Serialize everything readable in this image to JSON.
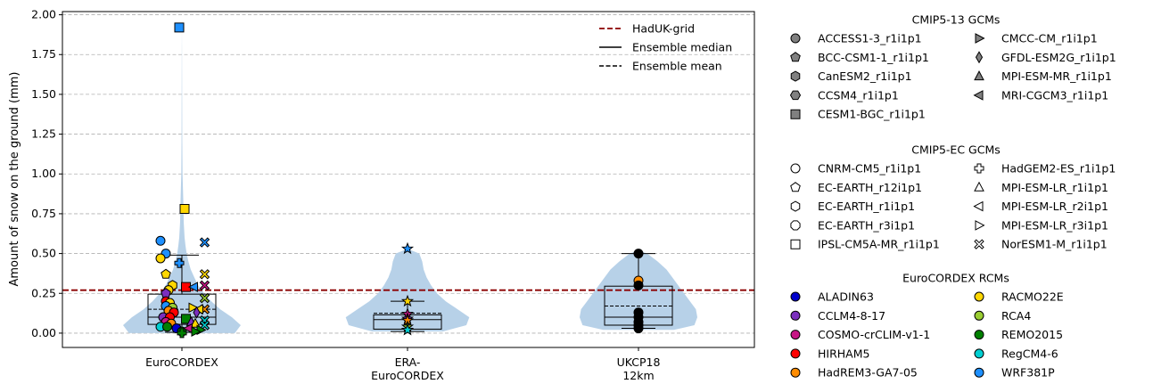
{
  "chart_data": {
    "type": "violin",
    "ylabel": "Amount of snow on the ground (mm)",
    "ylim": [
      -0.09,
      2.02
    ],
    "yticks": [
      0.0,
      0.25,
      0.5,
      0.75,
      1.0,
      1.25,
      1.5,
      1.75,
      2.0
    ],
    "ytick_labels": [
      "0.00",
      "0.25",
      "0.50",
      "0.75",
      "1.00",
      "1.25",
      "1.50",
      "1.75",
      "2.00"
    ],
    "grid": true,
    "categories": [
      {
        "key": "euro",
        "label_lines": [
          "EuroCORDEX"
        ]
      },
      {
        "key": "era",
        "label_lines": [
          "ERA-",
          "EuroCORDEX"
        ]
      },
      {
        "key": "ukcp",
        "label_lines": [
          "UKCP18",
          "12km"
        ]
      }
    ],
    "reference_line": {
      "name": "HadUK-grid",
      "value": 0.27,
      "color": "#8b0000"
    },
    "legend_top": [
      {
        "label": "HadUK-grid",
        "style": "red-dashed"
      },
      {
        "label": "Ensemble median",
        "style": "solid"
      },
      {
        "label": "Ensemble mean",
        "style": "dashed"
      }
    ],
    "violins": [
      {
        "profile": [
          [
            0.0,
            1.8
          ],
          [
            0.05,
            2.0
          ],
          [
            0.1,
            1.7
          ],
          [
            0.15,
            1.3
          ],
          [
            0.2,
            1.0
          ],
          [
            0.25,
            0.75
          ],
          [
            0.3,
            0.55
          ],
          [
            0.35,
            0.42
          ],
          [
            0.4,
            0.3
          ],
          [
            0.45,
            0.22
          ],
          [
            0.5,
            0.16
          ],
          [
            0.55,
            0.12
          ],
          [
            0.6,
            0.09
          ],
          [
            0.7,
            0.06
          ],
          [
            0.8,
            0.05
          ],
          [
            0.9,
            0.035
          ],
          [
            1.0,
            0.02
          ],
          [
            1.2,
            0.012
          ],
          [
            1.4,
            0.008
          ],
          [
            1.6,
            0.005
          ],
          [
            1.8,
            0.003
          ],
          [
            1.92,
            0.001
          ]
        ]
      },
      {
        "profile": [
          [
            0.01,
            1.2
          ],
          [
            0.05,
            2.0
          ],
          [
            0.1,
            2.1
          ],
          [
            0.15,
            1.7
          ],
          [
            0.2,
            1.3
          ],
          [
            0.25,
            1.0
          ],
          [
            0.3,
            0.8
          ],
          [
            0.35,
            0.65
          ],
          [
            0.4,
            0.55
          ],
          [
            0.45,
            0.5
          ],
          [
            0.5,
            0.4
          ],
          [
            0.53,
            0.001
          ]
        ]
      },
      {
        "profile": [
          [
            0.02,
            1.2
          ],
          [
            0.05,
            1.9
          ],
          [
            0.1,
            2.0
          ],
          [
            0.15,
            1.95
          ],
          [
            0.2,
            1.75
          ],
          [
            0.25,
            1.55
          ],
          [
            0.3,
            1.35
          ],
          [
            0.35,
            1.15
          ],
          [
            0.4,
            0.95
          ],
          [
            0.45,
            0.65
          ],
          [
            0.5,
            0.3
          ],
          [
            0.52,
            0.001
          ]
        ]
      }
    ],
    "boxes": [
      {
        "q1": 0.055,
        "median": 0.1,
        "q3": 0.245,
        "mean": 0.15,
        "whisker_low": 0.005,
        "whisker_high": 0.49
      },
      {
        "q1": 0.025,
        "median": 0.085,
        "q3": 0.115,
        "mean": 0.125,
        "whisker_low": 0.01,
        "whisker_high": 0.2
      },
      {
        "q1": 0.05,
        "median": 0.1,
        "q3": 0.295,
        "mean": 0.17,
        "whisker_low": 0.03,
        "whisker_high": 0.5
      }
    ],
    "points": [
      {
        "c": 0,
        "dx": -0.02,
        "y": 1.92,
        "m": "square",
        "col": "#1e90ff"
      },
      {
        "c": 0,
        "dx": 0.02,
        "y": 0.78,
        "m": "square",
        "col": "#ffd700"
      },
      {
        "c": 0,
        "dx": -0.16,
        "y": 0.58,
        "m": "circle",
        "col": "#1e90ff"
      },
      {
        "c": 0,
        "dx": -0.12,
        "y": 0.5,
        "m": "circle",
        "col": "#1e90ff"
      },
      {
        "c": 0,
        "dx": -0.16,
        "y": 0.47,
        "m": "circle",
        "col": "#ffd700"
      },
      {
        "c": 0,
        "dx": -0.02,
        "y": 0.44,
        "m": "cross",
        "col": "#1e90ff"
      },
      {
        "c": 0,
        "dx": 0.17,
        "y": 0.57,
        "m": "xcross",
        "col": "#1e90ff"
      },
      {
        "c": 0,
        "dx": 0.17,
        "y": 0.37,
        "m": "xcross",
        "col": "#ffd700"
      },
      {
        "c": 0,
        "dx": 0.17,
        "y": 0.3,
        "m": "xcross",
        "col": "#c71585"
      },
      {
        "c": 0,
        "dx": 0.17,
        "y": 0.22,
        "m": "xcross",
        "col": "#9acd32"
      },
      {
        "c": 0,
        "dx": 0.17,
        "y": 0.15,
        "m": "xcross",
        "col": "#ff8c00"
      },
      {
        "c": 0,
        "dx": 0.17,
        "y": 0.08,
        "m": "xcross",
        "col": "#00ced1"
      },
      {
        "c": 0,
        "dx": 0.17,
        "y": 0.05,
        "m": "xcross",
        "col": "#00ced1"
      },
      {
        "c": 0,
        "dx": -0.12,
        "y": 0.37,
        "m": "pentagon",
        "col": "#ffd700"
      },
      {
        "c": 0,
        "dx": -0.07,
        "y": 0.3,
        "m": "hexagon",
        "col": "#ffd700"
      },
      {
        "c": 0,
        "dx": -0.1,
        "y": 0.27,
        "m": "circle",
        "col": "#ffd700"
      },
      {
        "c": 0,
        "dx": -0.12,
        "y": 0.25,
        "m": "pentagon",
        "col": "#7b2fbe"
      },
      {
        "c": 0,
        "dx": -0.12,
        "y": 0.2,
        "m": "circle",
        "col": "#ff0000"
      },
      {
        "c": 0,
        "dx": -0.09,
        "y": 0.19,
        "m": "circle",
        "col": "#ffd700"
      },
      {
        "c": 0,
        "dx": -0.12,
        "y": 0.17,
        "m": "circle",
        "col": "#1e90ff"
      },
      {
        "c": 0,
        "dx": -0.07,
        "y": 0.16,
        "m": "circle",
        "col": "#9acd32"
      },
      {
        "c": 0,
        "dx": -0.1,
        "y": 0.14,
        "m": "circle",
        "col": "#ff8c00"
      },
      {
        "c": 0,
        "dx": -0.06,
        "y": 0.13,
        "m": "circle",
        "col": "#ff0000"
      },
      {
        "c": 0,
        "dx": -0.14,
        "y": 0.1,
        "m": "circle",
        "col": "#7b2fbe"
      },
      {
        "c": 0,
        "dx": -0.09,
        "y": 0.1,
        "m": "circle",
        "col": "#ff0000"
      },
      {
        "c": 0,
        "dx": -0.12,
        "y": 0.07,
        "m": "circle",
        "col": "#c71585"
      },
      {
        "c": 0,
        "dx": -0.08,
        "y": 0.06,
        "m": "circle",
        "col": "#ff8c00"
      },
      {
        "c": 0,
        "dx": -0.16,
        "y": 0.04,
        "m": "circle",
        "col": "#00ced1"
      },
      {
        "c": 0,
        "dx": -0.11,
        "y": 0.04,
        "m": "circle",
        "col": "#008000"
      },
      {
        "c": 0,
        "dx": -0.04,
        "y": 0.03,
        "m": "circle",
        "col": "#0000cd"
      },
      {
        "c": 0,
        "dx": 0.0,
        "y": 0.01,
        "m": "circle",
        "col": "#008000"
      },
      {
        "c": 0,
        "dx": 0.03,
        "y": 0.29,
        "m": "square",
        "col": "#ff0000"
      },
      {
        "c": 0,
        "dx": 0.09,
        "y": 0.29,
        "m": "tri-left",
        "col": "#1e90ff"
      },
      {
        "c": 0,
        "dx": 0.08,
        "y": 0.16,
        "m": "tri-right",
        "col": "#ffd700"
      },
      {
        "c": 0,
        "dx": 0.13,
        "y": 0.15,
        "m": "tri-left",
        "col": "#ffd700"
      },
      {
        "c": 0,
        "dx": 0.11,
        "y": 0.13,
        "m": "diamond",
        "col": "#7b2fbe"
      },
      {
        "c": 0,
        "dx": 0.03,
        "y": 0.09,
        "m": "square",
        "col": "#008000"
      },
      {
        "c": 0,
        "dx": 0.07,
        "y": 0.07,
        "m": "tri-up",
        "col": "#7b2fbe"
      },
      {
        "c": 0,
        "dx": 0.1,
        "y": 0.06,
        "m": "tri-up",
        "col": "#ffd700"
      },
      {
        "c": 0,
        "dx": 0.05,
        "y": 0.03,
        "m": "tri-left",
        "col": "#c71585"
      },
      {
        "c": 0,
        "dx": 0.14,
        "y": 0.02,
        "m": "tri-right",
        "col": "#008000"
      },
      {
        "c": 0,
        "dx": 0.1,
        "y": 0.01,
        "m": "tri-right",
        "col": "#008000"
      },
      {
        "c": 0,
        "dx": 0.0,
        "y": 0.0,
        "m": "cross",
        "col": "#008000"
      },
      {
        "c": 1,
        "dx": 0.0,
        "y": 0.53,
        "m": "star",
        "col": "#1e90ff"
      },
      {
        "c": 1,
        "dx": 0.0,
        "y": 0.2,
        "m": "star",
        "col": "#ffd700"
      },
      {
        "c": 1,
        "dx": 0.0,
        "y": 0.12,
        "m": "star",
        "col": "#c71585"
      },
      {
        "c": 1,
        "dx": 0.0,
        "y": 0.09,
        "m": "star",
        "col": "#7b2fbe"
      },
      {
        "c": 1,
        "dx": 0.0,
        "y": 0.08,
        "m": "star",
        "col": "#ff8c00"
      },
      {
        "c": 1,
        "dx": 0.0,
        "y": 0.04,
        "m": "star",
        "col": "#9acd32"
      },
      {
        "c": 1,
        "dx": 0.0,
        "y": 0.02,
        "m": "star",
        "col": "#008000"
      },
      {
        "c": 1,
        "dx": 0.0,
        "y": 0.02,
        "m": "star",
        "col": "#00ced1"
      },
      {
        "c": 2,
        "dx": 0.0,
        "y": 0.5,
        "m": "circle",
        "col": "#000000"
      },
      {
        "c": 2,
        "dx": 0.0,
        "y": 0.33,
        "m": "circle",
        "col": "#ff8c00"
      },
      {
        "c": 2,
        "dx": 0.0,
        "y": 0.3,
        "m": "circle",
        "col": "#000000"
      },
      {
        "c": 2,
        "dx": 0.0,
        "y": 0.13,
        "m": "circle",
        "col": "#000000"
      },
      {
        "c": 2,
        "dx": 0.0,
        "y": 0.1,
        "m": "circle",
        "col": "#000000"
      },
      {
        "c": 2,
        "dx": 0.0,
        "y": 0.07,
        "m": "circle",
        "col": "#000000"
      },
      {
        "c": 2,
        "dx": 0.0,
        "y": 0.05,
        "m": "circle",
        "col": "#000000"
      },
      {
        "c": 2,
        "dx": 0.0,
        "y": 0.03,
        "m": "circle",
        "col": "#000000"
      }
    ],
    "legend_groups": [
      {
        "title": "CMIP5-13 GCMs",
        "fill": "#808080",
        "col1": [
          {
            "label": "ACCESS1-3_r1i1p1",
            "m": "circle"
          },
          {
            "label": "BCC-CSM1-1_r1i1p1",
            "m": "pentagon"
          },
          {
            "label": "CanESM2_r1i1p1",
            "m": "hexagon"
          },
          {
            "label": "CCSM4_r1i1p1",
            "m": "hexagon2"
          },
          {
            "label": "CESM1-BGC_r1i1p1",
            "m": "square"
          }
        ],
        "col2": [
          {
            "label": "CMCC-CM_r1i1p1",
            "m": "tri-right"
          },
          {
            "label": "GFDL-ESM2G_r1i1p1",
            "m": "diamond"
          },
          {
            "label": "MPI-ESM-MR_r1i1p1",
            "m": "tri-up"
          },
          {
            "label": "MRI-CGCM3_r1i1p1",
            "m": "tri-left"
          }
        ]
      },
      {
        "title": "CMIP5-EC GCMs",
        "fill": "#ffffff",
        "col1": [
          {
            "label": "CNRM-CM5_r1i1p1",
            "m": "circle"
          },
          {
            "label": "EC-EARTH_r12i1p1",
            "m": "pentagon"
          },
          {
            "label": "EC-EARTH_r1i1p1",
            "m": "hexagon"
          },
          {
            "label": "EC-EARTH_r3i1p1",
            "m": "octagon"
          },
          {
            "label": "IPSL-CM5A-MR_r1i1p1",
            "m": "square"
          }
        ],
        "col2": [
          {
            "label": "HadGEM2-ES_r1i1p1",
            "m": "cross"
          },
          {
            "label": "MPI-ESM-LR_r1i1p1",
            "m": "tri-up"
          },
          {
            "label": "MPI-ESM-LR_r2i1p1",
            "m": "tri-left"
          },
          {
            "label": "MPI-ESM-LR_r3i1p1",
            "m": "tri-right"
          },
          {
            "label": "NorESM1-M_r1i1p1",
            "m": "xcross"
          }
        ]
      },
      {
        "title": "EuroCORDEX RCMs",
        "col1": [
          {
            "label": "ALADIN63",
            "m": "circle",
            "col": "#0000cd"
          },
          {
            "label": "CCLM4-8-17",
            "m": "circle",
            "col": "#7b2fbe"
          },
          {
            "label": "COSMO-crCLIM-v1-1",
            "m": "circle",
            "col": "#c71585"
          },
          {
            "label": "HIRHAM5",
            "m": "circle",
            "col": "#ff0000"
          },
          {
            "label": "HadREM3-GA7-05",
            "m": "circle",
            "col": "#ff8c00"
          }
        ],
        "col2": [
          {
            "label": "RACMO22E",
            "m": "circle",
            "col": "#ffd700"
          },
          {
            "label": "RCA4",
            "m": "circle",
            "col": "#9acd32"
          },
          {
            "label": "REMO2015",
            "m": "circle",
            "col": "#008000"
          },
          {
            "label": "RegCM4-6",
            "m": "circle",
            "col": "#00ced1"
          },
          {
            "label": "WRF381P",
            "m": "circle",
            "col": "#1e90ff"
          }
        ]
      }
    ],
    "colors": {
      "violin": "#b7d1e8",
      "grid": "#b0b0b0"
    }
  }
}
